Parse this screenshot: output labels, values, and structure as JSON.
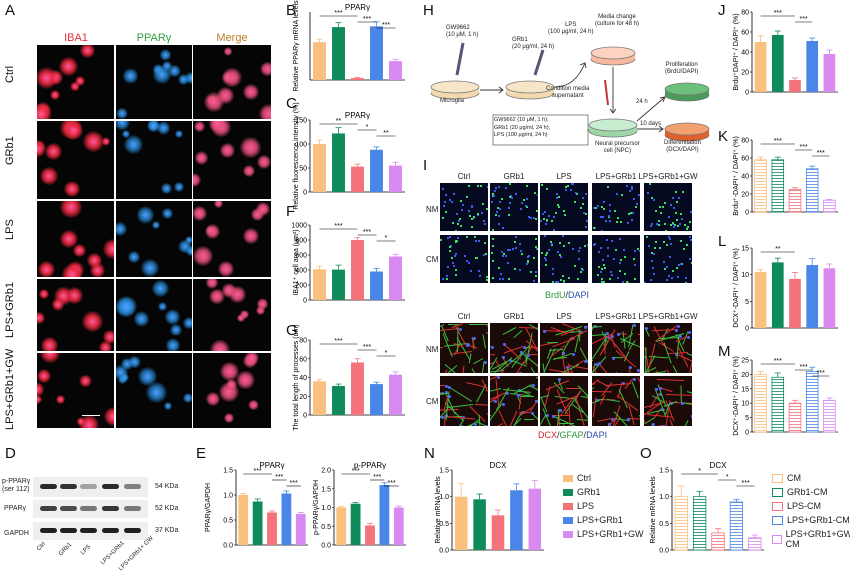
{
  "panel_letters": {
    "A": "A",
    "B": "B",
    "C": "C",
    "D": "D",
    "E": "E",
    "F": "F",
    "G": "G",
    "H": "H",
    "I": "I",
    "J": "J",
    "K": "K",
    "L": "L",
    "M": "M",
    "N": "N",
    "O": "O"
  },
  "panel_a": {
    "columns": [
      "IBA1",
      "PPARγ",
      "Merge"
    ],
    "column_colors": [
      "#e0303a",
      "#33a040",
      "#c07a2a"
    ],
    "rows": [
      "Ctrl",
      "GRb1",
      "LPS",
      "LPS+GRb1",
      "LPS+GRb1+GW"
    ]
  },
  "panel_d": {
    "bands": [
      "p-PPARγ\n(ser 112)",
      "PPARγ",
      "GAPDH"
    ],
    "band_label_1": "p-PPARγ",
    "band_label_1b": "(ser 112)",
    "band_label_2": "PPARγ",
    "band_label_3": "GAPDH",
    "sizes": [
      "54 KDa",
      "52 KDa",
      "37 KDa"
    ],
    "lanes": [
      "Ctrl",
      "GRb1",
      "LPS",
      "LPS+GRb1",
      "LPS+GRb1+ GW"
    ]
  },
  "panel_h": {
    "agonist": "GW9662",
    "agonist_dose": "(10 μM, 1 h)",
    "microglia": "Microglia",
    "grb1": "GRb1",
    "grb1_dose": "(20 μg/ml, 24 h)",
    "lps": "LPS",
    "lps_dose": "(100 μg/ml, 24 h)",
    "media_change": "Media change",
    "media_change_2": "(culture for 48 h)",
    "condition_media": "Condition media",
    "supernatant": "supernatant",
    "box_line1": "GW9662  (10 μM, 1 h);",
    "box_line2": "GRb1  (20 μg/ml, 24 h);",
    "box_line3": "LPS (100 μg/ml, 24 h)",
    "npc": "Neural precursor",
    "npc2": "cell (NPC)",
    "t24": "24 h",
    "t10": "10 days",
    "proliferation": "Proliferation",
    "proliferation2": "(BrdU/DAPI)",
    "differentiation": "Differentiation",
    "differentiation2": "(DCX/DAPI)"
  },
  "panel_i": {
    "columns": [
      "Ctrl",
      "GRb1",
      "LPS",
      "LPS+GRb1",
      "LPS+GRb1+GW"
    ],
    "rows": [
      "NM",
      "CM"
    ],
    "brdu_caption": [
      "BrdU",
      "/",
      "DAPI"
    ],
    "dcx_caption": [
      "DCX",
      "/",
      "GFAP",
      "/",
      "DAPI"
    ]
  },
  "colors": {
    "ctrl": "#f9c07e",
    "grb1": "#0f8a5a",
    "lps": "#f4737a",
    "lps_grb1": "#4a86e8",
    "lps_grb1_gw": "#d98af0"
  },
  "legend_n": [
    "Ctrl",
    "GRb1",
    "LPS",
    "LPS+GRb1",
    "LPS+GRb1+GW"
  ],
  "legend_o": [
    "CM",
    "GRb1-CM",
    "LPS-CM",
    "LPS+GRb1-CM",
    "LPS+GRb1+GW-CM"
  ],
  "chart_data": [
    {
      "id": "B",
      "type": "bar",
      "title": "PPARγ",
      "ylabel": "Relative PPARγ mRNA levels",
      "categories": [
        "Ctrl",
        "GRb1",
        "LPS",
        "LPS+GRb1",
        "LPS+GRb1+GW"
      ],
      "values": [
        1.0,
        1.4,
        0.05,
        1.42,
        0.5
      ],
      "errors": [
        0.08,
        0.12,
        0.02,
        0.12,
        0.05
      ],
      "ylim": [
        0,
        1.8
      ],
      "sig": [
        "***",
        "***",
        "***"
      ]
    },
    {
      "id": "C",
      "type": "bar",
      "title": "PPARγ",
      "ylabel": "Relative fluorescence intensity (%)",
      "categories": [
        "Ctrl",
        "GRb1",
        "LPS",
        "LPS+GRb1",
        "LPS+GRb1+GW"
      ],
      "values": [
        100,
        122,
        53,
        88,
        55
      ],
      "errors": [
        8,
        12,
        5,
        6,
        7
      ],
      "ylim": [
        0,
        150
      ],
      "yticks": [
        0,
        50,
        100,
        150
      ],
      "sig": [
        "**",
        "*",
        "**"
      ]
    },
    {
      "id": "F",
      "type": "bar",
      "ylabel": "IBA1⁺ cell area (μm²)",
      "categories": [
        "Ctrl",
        "GRb1",
        "LPS",
        "LPS+GRb1",
        "LPS+GRb1+GW"
      ],
      "values": [
        410,
        405,
        800,
        380,
        580
      ],
      "errors": [
        40,
        60,
        30,
        40,
        30
      ],
      "ylim": [
        0,
        1000
      ],
      "yticks": [
        0,
        200,
        400,
        600,
        800,
        1000
      ],
      "sig": [
        "***",
        "***",
        "*"
      ]
    },
    {
      "id": "G",
      "type": "bar",
      "ylabel": "The total length of processes (um)",
      "categories": [
        "Ctrl",
        "GRb1",
        "LPS",
        "LPS+GRb1",
        "LPS+GRb1+GW"
      ],
      "values": [
        36,
        31,
        56,
        33,
        43
      ],
      "errors": [
        2,
        2,
        4,
        2,
        3
      ],
      "ylim": [
        0,
        80
      ],
      "yticks": [
        0,
        20,
        40,
        60,
        80
      ],
      "sig": [
        "***",
        "***",
        "*"
      ]
    },
    {
      "id": "E1",
      "type": "bar",
      "title": "PPARγ",
      "ylabel": "PPARγ/GAPDH",
      "categories": [
        "Ctrl",
        "GRb1",
        "LPS",
        "LPS+GRb1",
        "LPS+GRb1+GW"
      ],
      "values": [
        1.0,
        0.87,
        0.65,
        1.03,
        0.62
      ],
      "errors": [
        0.03,
        0.05,
        0.03,
        0.05,
        0.03
      ],
      "ylim": [
        0,
        1.5
      ],
      "yticks": [
        0.0,
        0.5,
        1.0,
        1.5
      ],
      "sig": [
        "***",
        "***",
        "***"
      ]
    },
    {
      "id": "E2",
      "type": "bar",
      "title": "p-PPARγ",
      "ylabel": "p-PPARγ/GAPDH",
      "categories": [
        "Ctrl",
        "GRb1",
        "LPS",
        "LPS+GRb1",
        "LPS+GRb1+GW"
      ],
      "values": [
        1.0,
        1.1,
        0.52,
        1.6,
        1.0
      ],
      "errors": [
        0.03,
        0.03,
        0.06,
        0.06,
        0.04
      ],
      "ylim": [
        0,
        2.0
      ],
      "yticks": [
        0.0,
        0.5,
        1.0,
        1.5,
        2.0
      ],
      "sig": [
        "***",
        "***",
        "***"
      ]
    },
    {
      "id": "N",
      "type": "bar",
      "title": "DCX",
      "ylabel": "Relative mRNA levels",
      "categories": [
        "Ctrl",
        "GRb1",
        "LPS",
        "LPS+GRb1",
        "LPS+GRb1+GW"
      ],
      "values": [
        1.0,
        0.95,
        0.65,
        1.12,
        1.15
      ],
      "errors": [
        0.25,
        0.1,
        0.1,
        0.12,
        0.15
      ],
      "ylim": [
        0,
        1.5
      ],
      "yticks": [
        0.0,
        0.5,
        1.0,
        1.5
      ],
      "sig": []
    },
    {
      "id": "J",
      "type": "bar",
      "ylabel": "Brdu⁺DAPI⁺ / DAPI⁺ (%)",
      "categories": [
        "CM",
        "GRb1-CM",
        "LPS-CM",
        "LPS+GRb1-CM",
        "LPS+GRb1+GW-CM"
      ],
      "values": [
        50,
        57,
        12,
        51,
        38
      ],
      "errors": [
        6,
        4,
        2,
        3,
        4
      ],
      "ylim": [
        0,
        80
      ],
      "yticks": [
        0,
        20,
        40,
        60,
        80
      ],
      "sig": [
        "***",
        "***"
      ]
    },
    {
      "id": "K",
      "type": "bar",
      "hatched": true,
      "ylabel": "Brdu⁺-DAPI⁺ / DAPI⁺ (%)",
      "categories": [
        "CM",
        "GRb1-CM",
        "LPS-CM",
        "LPS+GRb1-CM",
        "LPS+GRb1+GW-CM"
      ],
      "values": [
        58,
        58,
        25,
        48,
        13
      ],
      "errors": [
        3,
        3,
        2,
        3,
        1
      ],
      "ylim": [
        0,
        80
      ],
      "yticks": [
        0,
        20,
        40,
        60,
        80
      ],
      "sig": [
        "***",
        "***",
        "***"
      ]
    },
    {
      "id": "L",
      "type": "bar",
      "ylabel": "DCX⁺-DAPI⁺ / DAPI⁺ (%)",
      "categories": [
        "CM",
        "GRb1-CM",
        "LPS-CM",
        "LPS+GRb1-CM",
        "LPS+GRb1+GW-CM"
      ],
      "values": [
        10.5,
        12.3,
        9.2,
        11.8,
        11.2
      ],
      "errors": [
        0.5,
        0.8,
        1.2,
        1.2,
        0.8
      ],
      "ylim": [
        0,
        15
      ],
      "yticks": [
        0,
        5,
        10,
        15
      ],
      "sig": [
        "**"
      ]
    },
    {
      "id": "M",
      "type": "bar",
      "hatched": true,
      "ylabel": "DCX⁺-DAPI⁺ / DAPI⁺ (%)",
      "categories": [
        "CM",
        "GRb1-CM",
        "LPS-CM",
        "LPS+GRb1-CM",
        "LPS+GRb1+GW-CM"
      ],
      "values": [
        20,
        19,
        10,
        21,
        11
      ],
      "errors": [
        1,
        1.5,
        1,
        1.5,
        0.8
      ],
      "ylim": [
        0,
        25
      ],
      "yticks": [
        0,
        5,
        10,
        15,
        20,
        25
      ],
      "sig": [
        "***",
        "***",
        "***"
      ]
    },
    {
      "id": "O",
      "type": "bar",
      "hatched": true,
      "title": "DCX",
      "ylabel": "Relative mRNA levels",
      "categories": [
        "CM",
        "GRb1-CM",
        "LPS-CM",
        "LPS+GRb1-CM",
        "LPS+GRb1+GW-CM"
      ],
      "values": [
        1.0,
        1.0,
        0.32,
        0.9,
        0.23
      ],
      "errors": [
        0.2,
        0.1,
        0.08,
        0.05,
        0.05
      ],
      "ylim": [
        0,
        1.5
      ],
      "yticks": [
        0.0,
        0.5,
        1.0,
        1.5
      ],
      "sig": [
        "*",
        "*",
        "***"
      ]
    }
  ]
}
